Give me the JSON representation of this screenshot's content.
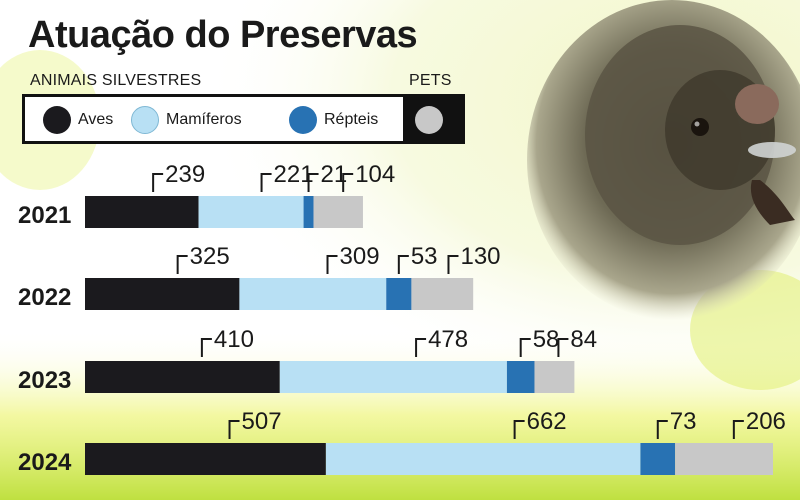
{
  "title": "Atuação do Preservas",
  "groups": {
    "wild": "ANIMAIS SILVESTRES",
    "pets": "PETS"
  },
  "legend": [
    {
      "label": "Aves",
      "color": "#1b1a1e"
    },
    {
      "label": "Mamíferos",
      "color": "#b8e0f4"
    },
    {
      "label": "Répteis",
      "color": "#2872b3"
    },
    {
      "label": "",
      "color": "#c8c8c8"
    }
  ],
  "chart_data": {
    "type": "bar",
    "orientation": "horizontal",
    "stacked": true,
    "categories": [
      "2021",
      "2022",
      "2023",
      "2024"
    ],
    "series": [
      {
        "name": "Aves",
        "color": "#1b1a1e",
        "values": [
          239,
          325,
          410,
          507
        ]
      },
      {
        "name": "Mamíferos",
        "color": "#b8e0f4",
        "values": [
          221,
          309,
          478,
          662
        ]
      },
      {
        "name": "Répteis",
        "color": "#2872b3",
        "values": [
          21,
          53,
          58,
          73
        ]
      },
      {
        "name": "Pets",
        "color": "#c8c8c8",
        "values": [
          104,
          130,
          84,
          206
        ]
      }
    ],
    "title": "Atuação do Preservas",
    "xlabel": "",
    "ylabel": "",
    "grid": false,
    "legend_position": "top-left"
  }
}
